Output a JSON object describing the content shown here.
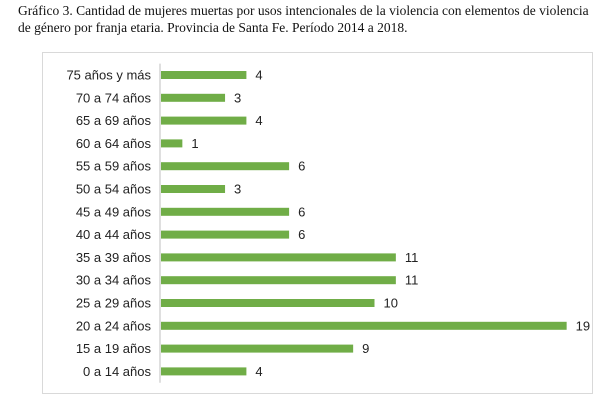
{
  "caption": "Gráfico 3. Cantidad de mujeres muertas por usos intencionales de la violencia con elementos de violencia de género por franja etaria. Provincia de Santa Fe. Período 2014 a 2018.",
  "colors": {
    "bar": "#70ad47",
    "frame": "#d9d9d9",
    "axis": "#bfbfbf",
    "text": "#222222"
  },
  "chart_data": {
    "type": "bar",
    "orientation": "horizontal",
    "title": "",
    "xlabel": "",
    "ylabel": "",
    "grid": false,
    "legend": "none",
    "xlim": [
      0,
      19
    ],
    "categories": [
      "75 años y más",
      "70 a 74 años",
      "65 a 69 años",
      "60 a 64 años",
      "55 a 59 años",
      "50 a 54 años",
      "45 a 49 años",
      "40 a 44 años",
      "35 a 39 años",
      "30 a 34 años",
      "25 a 29 años",
      "20 a 24 años",
      "15 a 19 años",
      "0 a 14 años"
    ],
    "values": [
      4,
      3,
      4,
      1,
      6,
      3,
      6,
      6,
      11,
      11,
      10,
      19,
      9,
      4
    ]
  }
}
